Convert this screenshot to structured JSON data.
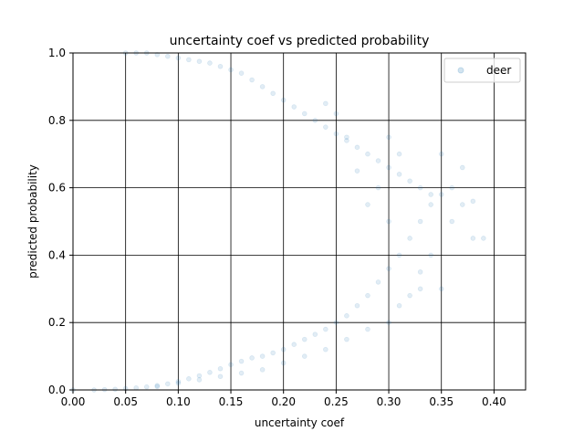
{
  "chart_data": {
    "type": "scatter",
    "title": "uncertainty coef vs predicted probability",
    "xlabel": "uncertainty coef",
    "ylabel": "predicted probability",
    "xlim": [
      0.0,
      0.43
    ],
    "ylim": [
      0.0,
      1.0
    ],
    "xticks": [
      0.0,
      0.05,
      0.1,
      0.15,
      0.2,
      0.25,
      0.3,
      0.35,
      0.4
    ],
    "xtick_labels": [
      "0.00",
      "0.05",
      "0.10",
      "0.15",
      "0.20",
      "0.25",
      "0.30",
      "0.35",
      "0.40"
    ],
    "yticks": [
      0.0,
      0.2,
      0.4,
      0.6,
      0.8,
      1.0
    ],
    "ytick_labels": [
      "0.0",
      "0.2",
      "0.4",
      "0.6",
      "0.8",
      "1.0"
    ],
    "grid": true,
    "legend_position": "upper right",
    "series": [
      {
        "name": "deer",
        "color": "#1f77b4",
        "alpha": 0.13,
        "points": [
          [
            0.0,
            0.0
          ],
          [
            0.02,
            0.0
          ],
          [
            0.03,
            0.001
          ],
          [
            0.04,
            0.002
          ],
          [
            0.05,
            0.004
          ],
          [
            0.06,
            0.006
          ],
          [
            0.07,
            0.009
          ],
          [
            0.08,
            0.013
          ],
          [
            0.09,
            0.018
          ],
          [
            0.1,
            0.025
          ],
          [
            0.11,
            0.033
          ],
          [
            0.12,
            0.042
          ],
          [
            0.13,
            0.052
          ],
          [
            0.14,
            0.063
          ],
          [
            0.15,
            0.075
          ],
          [
            0.16,
            0.085
          ],
          [
            0.17,
            0.095
          ],
          [
            0.18,
            0.1
          ],
          [
            0.19,
            0.11
          ],
          [
            0.2,
            0.12
          ],
          [
            0.21,
            0.135
          ],
          [
            0.22,
            0.15
          ],
          [
            0.23,
            0.165
          ],
          [
            0.24,
            0.18
          ],
          [
            0.25,
            0.2
          ],
          [
            0.26,
            0.22
          ],
          [
            0.27,
            0.25
          ],
          [
            0.28,
            0.28
          ],
          [
            0.29,
            0.32
          ],
          [
            0.3,
            0.36
          ],
          [
            0.31,
            0.4
          ],
          [
            0.32,
            0.45
          ],
          [
            0.33,
            0.5
          ],
          [
            0.34,
            0.55
          ],
          [
            0.35,
            0.58
          ],
          [
            0.36,
            0.5
          ],
          [
            0.37,
            0.55
          ],
          [
            0.38,
            0.45
          ],
          [
            0.35,
            0.3
          ],
          [
            0.33,
            0.3
          ],
          [
            0.3,
            0.2
          ],
          [
            0.28,
            0.18
          ],
          [
            0.26,
            0.15
          ],
          [
            0.24,
            0.12
          ],
          [
            0.22,
            0.1
          ],
          [
            0.2,
            0.08
          ],
          [
            0.18,
            0.06
          ],
          [
            0.16,
            0.05
          ],
          [
            0.14,
            0.04
          ],
          [
            0.12,
            0.03
          ],
          [
            0.1,
            0.02
          ],
          [
            0.08,
            0.01
          ],
          [
            0.05,
            1.0
          ],
          [
            0.06,
            1.0
          ],
          [
            0.07,
            1.0
          ],
          [
            0.08,
            0.995
          ],
          [
            0.09,
            0.99
          ],
          [
            0.1,
            0.985
          ],
          [
            0.11,
            0.98
          ],
          [
            0.12,
            0.975
          ],
          [
            0.13,
            0.97
          ],
          [
            0.14,
            0.96
          ],
          [
            0.15,
            0.95
          ],
          [
            0.16,
            0.94
          ],
          [
            0.17,
            0.92
          ],
          [
            0.18,
            0.9
          ],
          [
            0.19,
            0.88
          ],
          [
            0.2,
            0.86
          ],
          [
            0.21,
            0.84
          ],
          [
            0.22,
            0.82
          ],
          [
            0.23,
            0.8
          ],
          [
            0.24,
            0.78
          ],
          [
            0.25,
            0.76
          ],
          [
            0.26,
            0.74
          ],
          [
            0.27,
            0.72
          ],
          [
            0.28,
            0.7
          ],
          [
            0.29,
            0.68
          ],
          [
            0.3,
            0.66
          ],
          [
            0.31,
            0.64
          ],
          [
            0.32,
            0.62
          ],
          [
            0.33,
            0.6
          ],
          [
            0.34,
            0.58
          ],
          [
            0.35,
            0.7
          ],
          [
            0.36,
            0.6
          ],
          [
            0.37,
            0.66
          ],
          [
            0.38,
            0.56
          ],
          [
            0.39,
            0.45
          ],
          [
            0.34,
            0.4
          ],
          [
            0.33,
            0.35
          ],
          [
            0.32,
            0.28
          ],
          [
            0.31,
            0.25
          ],
          [
            0.3,
            0.5
          ],
          [
            0.29,
            0.6
          ],
          [
            0.28,
            0.55
          ],
          [
            0.27,
            0.65
          ],
          [
            0.26,
            0.75
          ],
          [
            0.25,
            0.82
          ],
          [
            0.24,
            0.85
          ],
          [
            0.3,
            0.75
          ],
          [
            0.31,
            0.7
          ]
        ]
      }
    ]
  }
}
